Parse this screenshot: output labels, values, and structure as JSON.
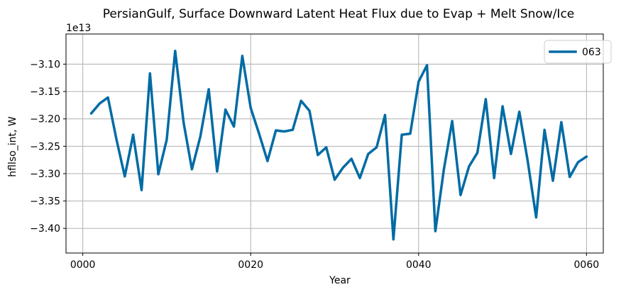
{
  "chart_data": {
    "type": "line",
    "title": "PersianGulf, Surface Downward Latent Heat Flux due to Evap + Melt Snow/Ice",
    "xlabel": "Year",
    "ylabel": "hfllso_int, W",
    "y_offset_label": "1e13",
    "xlim": [
      -2,
      62
    ],
    "ylim": [
      -3.445,
      -3.045
    ],
    "grid": true,
    "legend_position": "upper right",
    "x_ticks": [
      0,
      20,
      40,
      60
    ],
    "x_tick_labels": [
      "0000",
      "0020",
      "0040",
      "0060"
    ],
    "y_ticks": [
      -3.1,
      -3.15,
      -3.2,
      -3.25,
      -3.3,
      -3.35,
      -3.4
    ],
    "y_tick_labels": [
      "−3.10",
      "−3.15",
      "−3.20",
      "−3.25",
      "−3.30",
      "−3.35",
      "−3.40"
    ],
    "series": [
      {
        "name": "063",
        "color": "#006ba4",
        "x": [
          1,
          2,
          3,
          4,
          5,
          6,
          7,
          8,
          9,
          10,
          11,
          12,
          13,
          14,
          15,
          16,
          17,
          18,
          19,
          20,
          21,
          22,
          23,
          24,
          25,
          26,
          27,
          28,
          29,
          30,
          31,
          32,
          33,
          34,
          35,
          36,
          37,
          38,
          39,
          40,
          41,
          42,
          43,
          44,
          45,
          46,
          47,
          48,
          49,
          50,
          51,
          52,
          53,
          54,
          55,
          56,
          57,
          58,
          59,
          60
        ],
        "values": [
          -3.19,
          -3.172,
          -3.161,
          -3.237,
          -3.305,
          -3.229,
          -3.33,
          -3.117,
          -3.301,
          -3.238,
          -3.076,
          -3.206,
          -3.292,
          -3.232,
          -3.146,
          -3.296,
          -3.183,
          -3.214,
          -3.085,
          -3.18,
          -3.227,
          -3.277,
          -3.221,
          -3.223,
          -3.22,
          -3.167,
          -3.185,
          -3.266,
          -3.252,
          -3.311,
          -3.289,
          -3.273,
          -3.308,
          -3.264,
          -3.252,
          -3.193,
          -3.42,
          -3.229,
          -3.227,
          -3.132,
          -3.102,
          -3.405,
          -3.293,
          -3.204,
          -3.339,
          -3.287,
          -3.262,
          -3.164,
          -3.308,
          -3.177,
          -3.264,
          -3.187,
          -3.277,
          -3.38,
          -3.22,
          -3.313,
          -3.206,
          -3.306,
          -3.279,
          -3.269
        ]
      }
    ]
  }
}
